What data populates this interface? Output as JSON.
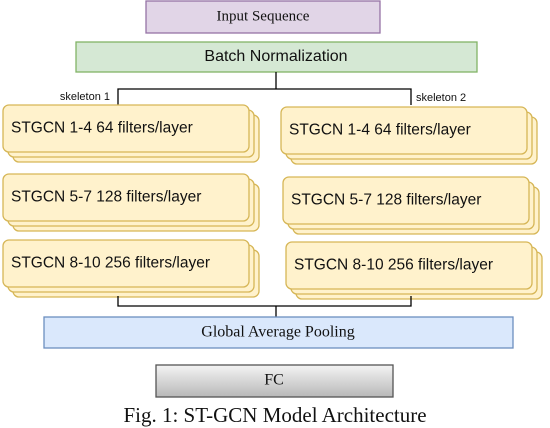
{
  "input": "Input Sequence",
  "normalization": "Batch Normalization",
  "branches": [
    {
      "label": "skeleton 1",
      "blocks": [
        "STGCN 1-4 64 filters/layer",
        "STGCN 5-7 128 filters/layer",
        "STGCN 8-10 256 filters/layer"
      ]
    },
    {
      "label": "skeleton 2",
      "blocks": [
        "STGCN 1-4 64 filters/layer",
        "STGCN 5-7 128 filters/layer",
        "STGCN 8-10 256 filters/layer"
      ]
    }
  ],
  "pooling": "Global Average Pooling",
  "output": "FC",
  "caption": "Fig. 1: ST-GCN Model Architecture"
}
